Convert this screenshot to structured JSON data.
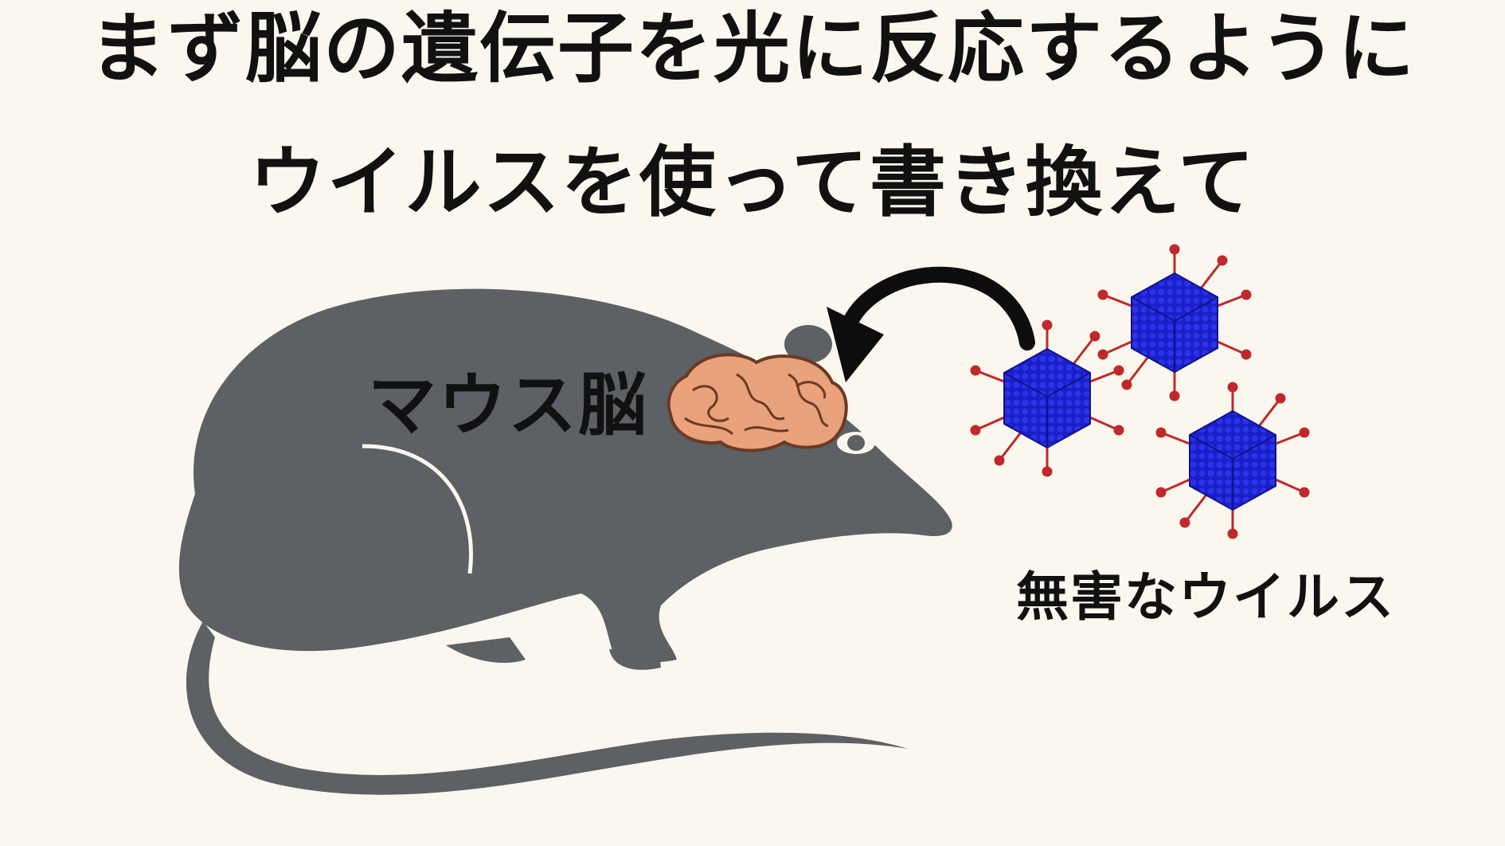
{
  "title": {
    "line1": "まず脳の遺伝子を光に反応するように",
    "line2": "ウイルスを使って書き換えて"
  },
  "labels": {
    "brain": "マウス脳",
    "virus": "無害なウイルス"
  },
  "colors": {
    "background": "#fcf7ee",
    "mouse": "#5d6064",
    "brain_fill": "#e9a27c",
    "brain_stroke": "#6b3a24",
    "virus_capsid": "#1a1fc8",
    "virus_spike": "#c0282b",
    "arrow": "#0d0d0d",
    "text": "#111111"
  },
  "icons": [
    "mouse-silhouette",
    "brain-icon",
    "curved-arrow-icon",
    "virus-icon"
  ]
}
